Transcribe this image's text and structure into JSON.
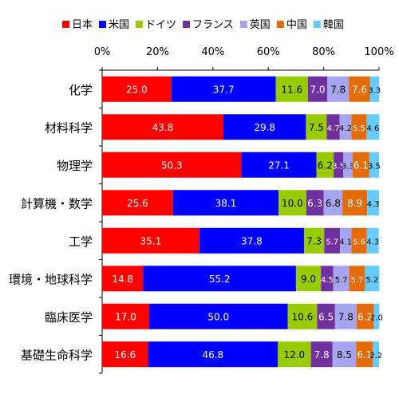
{
  "chart_data": {
    "type": "bar",
    "orientation": "horizontal",
    "stacked": "percent",
    "categories": [
      "化学",
      "材料科学",
      "物理学",
      "計算機・数学",
      "工学",
      "環境・地球科学",
      "臨床医学",
      "基礎生命科学"
    ],
    "series": [
      {
        "name": "日本",
        "color": "#ff0000",
        "values": [
          25.0,
          43.8,
          50.3,
          25.6,
          35.1,
          14.8,
          17.0,
          16.6
        ],
        "labels": [
          "25.0",
          "43.8",
          "50.3",
          "25.6",
          "35.1",
          "14.8",
          "17.0",
          "16.6"
        ]
      },
      {
        "name": "米国",
        "color": "#0000ff",
        "values": [
          37.7,
          29.8,
          27.1,
          38.1,
          37.8,
          55.2,
          50.0,
          46.8
        ],
        "labels": [
          "37.7",
          "29.8",
          "27.1",
          "38.1",
          "37.8",
          "55.2",
          "50.0",
          "46.8"
        ]
      },
      {
        "name": "ドイツ",
        "color": "#99cc00",
        "values": [
          11.6,
          7.5,
          6.2,
          10.0,
          7.3,
          9.0,
          10.6,
          12.0
        ],
        "labels": [
          "11.6",
          "7.5",
          "6.2",
          "10.0",
          "7.3",
          "9.0",
          "10.6",
          "12.0"
        ]
      },
      {
        "name": "フランス",
        "color": "#7030a0",
        "values": [
          7.0,
          4.7,
          3.5,
          6.3,
          5.7,
          4.5,
          6.5,
          7.8
        ],
        "labels": [
          "7.0",
          "4.7",
          "3.5",
          "6.3",
          "5.7",
          "4.5",
          "6.5",
          "7.8"
        ]
      },
      {
        "name": "英国",
        "color": "#a6a6f0",
        "values": [
          7.8,
          4.2,
          3.3,
          6.8,
          4.1,
          5.7,
          7.8,
          8.5
        ],
        "labels": [
          "7.8",
          "4.2",
          "3.3",
          "6.8",
          "4.1",
          "5.7",
          "7.8",
          "8.5"
        ]
      },
      {
        "name": "中国",
        "color": "#e36c09",
        "values": [
          7.6,
          5.5,
          6.1,
          8.9,
          5.6,
          5.7,
          6.2,
          6.1
        ],
        "labels": [
          "7.6",
          "5.5",
          "6.1",
          "8.9",
          "5.6",
          "5.7",
          "6.2",
          "6.1"
        ]
      },
      {
        "name": "韓国",
        "color": "#66ccff",
        "values": [
          3.3,
          4.6,
          3.5,
          4.3,
          4.3,
          5.2,
          2.0,
          2.2
        ],
        "labels": [
          "3.3",
          "4.6",
          "3.5",
          "4.3",
          "4.3",
          "5.2",
          "2.0",
          "2.2"
        ]
      }
    ],
    "xlim": [
      0,
      100
    ],
    "x_ticks": [
      "0%",
      "20%",
      "40%",
      "60%",
      "80%",
      "100%"
    ],
    "legend_position": "top",
    "grid": false
  }
}
